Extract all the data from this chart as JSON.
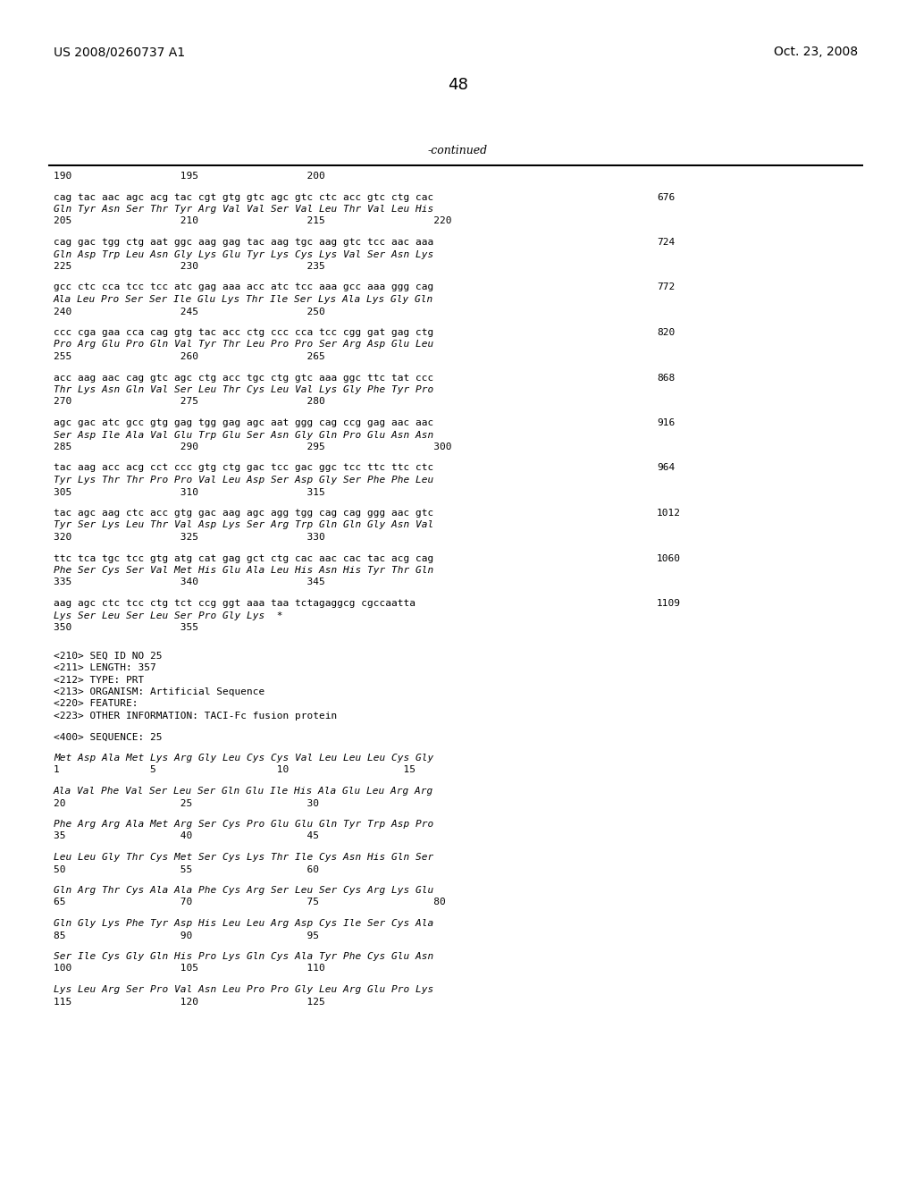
{
  "header_left": "US 2008/0260737 A1",
  "header_right": "Oct. 23, 2008",
  "page_number": "48",
  "continued_label": "-continued",
  "background_color": "#ffffff",
  "text_color": "#000000",
  "lines": [
    [
      "ruler",
      "190                  195                  200",
      ""
    ],
    [
      "blank",
      "",
      ""
    ],
    [
      "dna",
      "cag tac aac agc acg tac cgt gtg gtc agc gtc ctc acc gtc ctg cac",
      "676"
    ],
    [
      "aa",
      "Gln Tyr Asn Ser Thr Tyr Arg Val Val Ser Val Leu Thr Val Leu His",
      ""
    ],
    [
      "ruler",
      "205                  210                  215                  220",
      ""
    ],
    [
      "blank",
      "",
      ""
    ],
    [
      "dna",
      "cag gac tgg ctg aat ggc aag gag tac aag tgc aag gtc tcc aac aaa",
      "724"
    ],
    [
      "aa",
      "Gln Asp Trp Leu Asn Gly Lys Glu Tyr Lys Cys Lys Val Ser Asn Lys",
      ""
    ],
    [
      "ruler",
      "225                  230                  235",
      ""
    ],
    [
      "blank",
      "",
      ""
    ],
    [
      "dna",
      "gcc ctc cca tcc tcc atc gag aaa acc atc tcc aaa gcc aaa ggg cag",
      "772"
    ],
    [
      "aa",
      "Ala Leu Pro Ser Ser Ile Glu Lys Thr Ile Ser Lys Ala Lys Gly Gln",
      ""
    ],
    [
      "ruler",
      "240                  245                  250",
      ""
    ],
    [
      "blank",
      "",
      ""
    ],
    [
      "dna",
      "ccc cga gaa cca cag gtg tac acc ctg ccc cca tcc cgg gat gag ctg",
      "820"
    ],
    [
      "aa",
      "Pro Arg Glu Pro Gln Val Tyr Thr Leu Pro Pro Ser Arg Asp Glu Leu",
      ""
    ],
    [
      "ruler",
      "255                  260                  265",
      ""
    ],
    [
      "blank",
      "",
      ""
    ],
    [
      "dna",
      "acc aag aac cag gtc agc ctg acc tgc ctg gtc aaa ggc ttc tat ccc",
      "868"
    ],
    [
      "aa",
      "Thr Lys Asn Gln Val Ser Leu Thr Cys Leu Val Lys Gly Phe Tyr Pro",
      ""
    ],
    [
      "ruler",
      "270                  275                  280",
      ""
    ],
    [
      "blank",
      "",
      ""
    ],
    [
      "dna",
      "agc gac atc gcc gtg gag tgg gag agc aat ggg cag ccg gag aac aac",
      "916"
    ],
    [
      "aa",
      "Ser Asp Ile Ala Val Glu Trp Glu Ser Asn Gly Gln Pro Glu Asn Asn",
      ""
    ],
    [
      "ruler",
      "285                  290                  295                  300",
      ""
    ],
    [
      "blank",
      "",
      ""
    ],
    [
      "dna",
      "tac aag acc acg cct ccc gtg ctg gac tcc gac ggc tcc ttc ttc ctc",
      "964"
    ],
    [
      "aa",
      "Tyr Lys Thr Thr Pro Pro Val Leu Asp Ser Asp Gly Ser Phe Phe Leu",
      ""
    ],
    [
      "ruler",
      "305                  310                  315",
      ""
    ],
    [
      "blank",
      "",
      ""
    ],
    [
      "dna",
      "tac agc aag ctc acc gtg gac aag agc agg tgg cag cag ggg aac gtc",
      "1012"
    ],
    [
      "aa",
      "Tyr Ser Lys Leu Thr Val Asp Lys Ser Arg Trp Gln Gln Gly Asn Val",
      ""
    ],
    [
      "ruler",
      "320                  325                  330",
      ""
    ],
    [
      "blank",
      "",
      ""
    ],
    [
      "dna",
      "ttc tca tgc tcc gtg atg cat gag gct ctg cac aac cac tac acg cag",
      "1060"
    ],
    [
      "aa",
      "Phe Ser Cys Ser Val Met His Glu Ala Leu His Asn His Tyr Thr Gln",
      ""
    ],
    [
      "ruler",
      "335                  340                  345",
      ""
    ],
    [
      "blank",
      "",
      ""
    ],
    [
      "dna",
      "aag agc ctc tcc ctg tct ccg ggt aaa taa tctagaggcg cgccaatta",
      "1109"
    ],
    [
      "aa",
      "Lys Ser Leu Ser Leu Ser Pro Gly Lys  *",
      ""
    ],
    [
      "ruler",
      "350                  355",
      ""
    ],
    [
      "gap",
      "",
      ""
    ],
    [
      "meta",
      "<210> SEQ ID NO 25",
      ""
    ],
    [
      "meta",
      "<211> LENGTH: 357",
      ""
    ],
    [
      "meta",
      "<212> TYPE: PRT",
      ""
    ],
    [
      "meta",
      "<213> ORGANISM: Artificial Sequence",
      ""
    ],
    [
      "meta",
      "<220> FEATURE:",
      ""
    ],
    [
      "meta",
      "<223> OTHER INFORMATION: TACI-Fc fusion protein",
      ""
    ],
    [
      "blank",
      "",
      ""
    ],
    [
      "meta",
      "<400> SEQUENCE: 25",
      ""
    ],
    [
      "blank",
      "",
      ""
    ],
    [
      "aa",
      "Met Asp Ala Met Lys Arg Gly Leu Cys Cys Val Leu Leu Leu Cys Gly",
      ""
    ],
    [
      "ruler",
      "1               5                    10                   15",
      ""
    ],
    [
      "blank",
      "",
      ""
    ],
    [
      "aa",
      "Ala Val Phe Val Ser Leu Ser Gln Glu Ile His Ala Glu Leu Arg Arg",
      ""
    ],
    [
      "ruler",
      "20                   25                   30",
      ""
    ],
    [
      "blank",
      "",
      ""
    ],
    [
      "aa",
      "Phe Arg Arg Ala Met Arg Ser Cys Pro Glu Glu Gln Tyr Trp Asp Pro",
      ""
    ],
    [
      "ruler",
      "35                   40                   45",
      ""
    ],
    [
      "blank",
      "",
      ""
    ],
    [
      "aa",
      "Leu Leu Gly Thr Cys Met Ser Cys Lys Thr Ile Cys Asn His Gln Ser",
      ""
    ],
    [
      "ruler",
      "50                   55                   60",
      ""
    ],
    [
      "blank",
      "",
      ""
    ],
    [
      "aa",
      "Gln Arg Thr Cys Ala Ala Phe Cys Arg Ser Leu Ser Cys Arg Lys Glu",
      ""
    ],
    [
      "ruler",
      "65                   70                   75                   80",
      ""
    ],
    [
      "blank",
      "",
      ""
    ],
    [
      "aa",
      "Gln Gly Lys Phe Tyr Asp His Leu Leu Arg Asp Cys Ile Ser Cys Ala",
      ""
    ],
    [
      "ruler",
      "85                   90                   95",
      ""
    ],
    [
      "blank",
      "",
      ""
    ],
    [
      "aa",
      "Ser Ile Cys Gly Gln His Pro Lys Gln Cys Ala Tyr Phe Cys Glu Asn",
      ""
    ],
    [
      "ruler",
      "100                  105                  110",
      ""
    ],
    [
      "blank",
      "",
      ""
    ],
    [
      "aa",
      "Lys Leu Arg Ser Pro Val Asn Leu Pro Pro Gly Leu Arg Glu Pro Lys",
      ""
    ],
    [
      "ruler",
      "115                  120                  125",
      ""
    ]
  ]
}
